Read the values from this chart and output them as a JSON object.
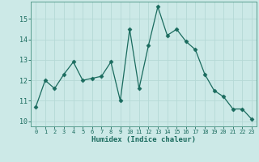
{
  "x": [
    0,
    1,
    2,
    3,
    4,
    5,
    6,
    7,
    8,
    9,
    10,
    11,
    12,
    13,
    14,
    15,
    16,
    17,
    18,
    19,
    20,
    21,
    22,
    23
  ],
  "y": [
    10.7,
    12.0,
    11.6,
    12.3,
    12.9,
    12.0,
    12.1,
    12.2,
    12.9,
    11.0,
    14.5,
    11.6,
    13.7,
    15.6,
    14.2,
    14.5,
    13.9,
    13.5,
    12.3,
    11.5,
    11.2,
    10.6,
    10.6,
    10.1
  ],
  "line_color": "#1a6b5e",
  "marker": "D",
  "marker_size": 2.5,
  "bg_color": "#cce9e7",
  "grid_color": "#b5d9d6",
  "xlabel": "Humidex (Indice chaleur)",
  "ylim": [
    9.75,
    15.85
  ],
  "xlim": [
    -0.5,
    23.5
  ],
  "yticks": [
    10,
    11,
    12,
    13,
    14,
    15
  ],
  "xticks": [
    0,
    1,
    2,
    3,
    4,
    5,
    6,
    7,
    8,
    9,
    10,
    11,
    12,
    13,
    14,
    15,
    16,
    17,
    18,
    19,
    20,
    21,
    22,
    23
  ],
  "tick_color": "#1a6b5e",
  "label_color": "#1a6b5e",
  "spine_color": "#5a9e90"
}
